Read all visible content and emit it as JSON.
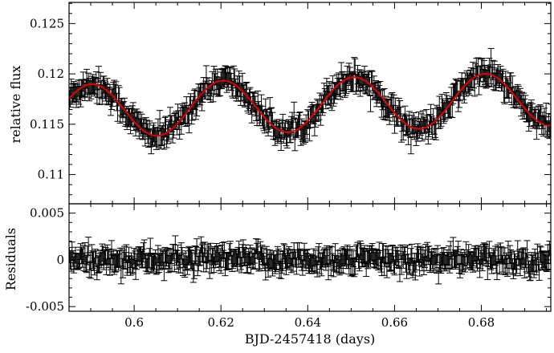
{
  "chart_data": [
    {
      "type": "scatter",
      "panel": "top",
      "title": "",
      "xlabel": "",
      "ylabel": "relative flux",
      "xlim": [
        0.585,
        0.696
      ],
      "ylim": [
        0.1071,
        0.1271
      ],
      "xticks": [
        0.6,
        0.62,
        0.64,
        0.66,
        0.68
      ],
      "yticks": [
        0.11,
        0.115,
        0.12,
        0.125
      ],
      "ytick_labels": [
        "0.11",
        "0.115",
        "0.12",
        "0.125"
      ],
      "grid": false,
      "legend": "none",
      "series": [
        {
          "kind": "points-with-errorbars",
          "model": {
            "mean": 0.1169,
            "amplitude": 0.00265,
            "period": 0.0302,
            "phase_ref": 0.0656,
            "trend": 0.0113
          },
          "x_range": [
            0.585,
            0.696
          ],
          "n_points": 560,
          "scatter_sd": 0.00055,
          "yerr": 0.0009,
          "color": "#000000"
        },
        {
          "kind": "model-line",
          "color": "#e00000"
        }
      ]
    },
    {
      "type": "scatter",
      "panel": "bottom",
      "title": "",
      "xlabel": "BJD-2457418 (days)",
      "ylabel": "Residuals",
      "xlim": [
        0.585,
        0.696
      ],
      "ylim": [
        -0.0055,
        0.006
      ],
      "xticks": [
        0.6,
        0.62,
        0.64,
        0.66,
        0.68
      ],
      "xtick_labels": [
        "0.6",
        "0.62",
        "0.64",
        "0.66",
        "0.68"
      ],
      "yticks": [
        -0.005,
        0,
        0.005
      ],
      "ytick_labels": [
        "-0.005",
        "0",
        "0.005"
      ],
      "grid": false,
      "legend": "none",
      "series": [
        {
          "kind": "points-with-errorbars",
          "mean": 0,
          "x_range": [
            0.585,
            0.696
          ],
          "n_points": 560,
          "scatter_sd": 0.0006,
          "yerr": 0.0009,
          "color": "#000000"
        }
      ]
    }
  ]
}
